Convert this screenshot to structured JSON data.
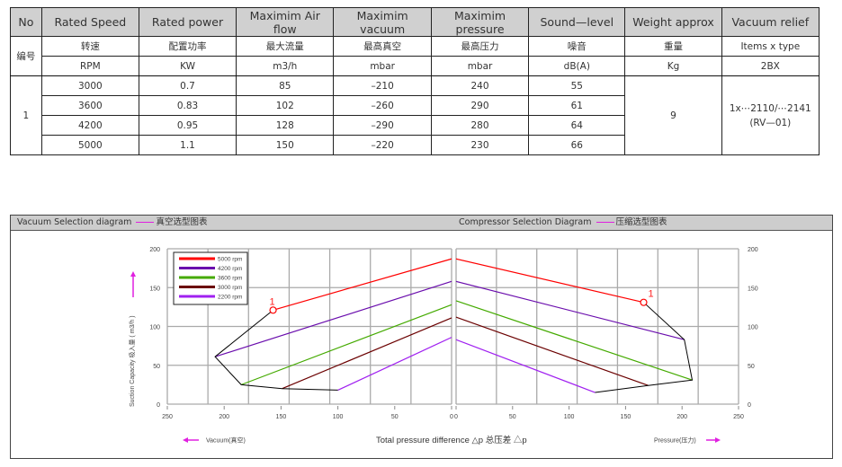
{
  "table": {
    "headers": [
      "No",
      "Rated Speed",
      "Rated power",
      "Maximim Air flow",
      "Maximim vacuum",
      "Maximim pressure",
      "Sound—level",
      "Weight approx",
      "Vacuum relief"
    ],
    "cn_row": {
      "no": "编号",
      "cells": [
        "转速",
        "配置功率",
        "最大流量",
        "最高真空",
        "最高压力",
        "噪音",
        "重量",
        "Items x type"
      ]
    },
    "unit_row": [
      "RPM",
      "KW",
      "m3/h",
      "mbar",
      "mbar",
      "dB(A)",
      "Kg",
      "2BX"
    ],
    "model_no": "1",
    "weight": "9",
    "vacuum_relief_line1": "1x⋯2110/⋯2141",
    "vacuum_relief_line2": "(RV—01)",
    "rows": [
      {
        "speed": "3000",
        "power": "0.7",
        "airflow": "85",
        "vacuum": "–210",
        "pressure": "240",
        "sound": "55"
      },
      {
        "speed": "3600",
        "power": "0.83",
        "airflow": "102",
        "vacuum": "–260",
        "pressure": "290",
        "sound": "61"
      },
      {
        "speed": "4200",
        "power": "0.95",
        "airflow": "128",
        "vacuum": "–290",
        "pressure": "280",
        "sound": "64"
      },
      {
        "speed": "5000",
        "power": "1.1",
        "airflow": "150",
        "vacuum": "–220",
        "pressure": "230",
        "sound": "66"
      }
    ]
  },
  "diagram": {
    "left_title_en": "Vacuum Selection diagram",
    "left_title_cn": "真空选型图表",
    "right_title_en": "Compressor Selection Diagram",
    "right_title_cn": "压缩选型图表",
    "y_axis_label": "Suction Capacity 吸入量 ( m3/h )",
    "x_axis_label": "Total pressure difference △p 总压差 △p",
    "vacuum_arrow_label": "Vacuum(真空)",
    "pressure_arrow_label": "Pressure(压力)",
    "marker_label": "1",
    "accent_color": "#e020e0"
  },
  "chart_data": [
    {
      "type": "line",
      "title": "Vacuum Selection diagram — 真空选型图表",
      "xlabel": "Vacuum(真空) — Total pressure difference △p (mbar)",
      "ylabel": "Suction Capacity 吸入量 ( m3/h )",
      "xlim": [
        250,
        0
      ],
      "ylim": [
        0,
        200
      ],
      "x_ticks": [
        250,
        200,
        150,
        100,
        50,
        0
      ],
      "y_ticks": [
        0,
        50,
        100,
        150,
        200
      ],
      "grid": true,
      "legend_position": "upper-left",
      "series": [
        {
          "name": "5000 rpm",
          "color": "#ff0000",
          "x": [
            157,
            0
          ],
          "y": [
            121,
            187
          ]
        },
        {
          "name": "4200 rpm",
          "color": "#6a0dad",
          "x": [
            208,
            0
          ],
          "y": [
            61,
            158
          ]
        },
        {
          "name": "3600 rpm",
          "color": "#44aa00",
          "x": [
            185,
            0
          ],
          "y": [
            25,
            128
          ]
        },
        {
          "name": "3000 rpm",
          "color": "#6b0000",
          "x": [
            149,
            0
          ],
          "y": [
            20,
            111
          ]
        },
        {
          "name": "2200 rpm",
          "color": "#a020f0",
          "x": [
            100,
            0
          ],
          "y": [
            18,
            86
          ]
        }
      ],
      "boundary": {
        "color": "#000000",
        "x": [
          157,
          208,
          185,
          149,
          100
        ],
        "y": [
          121,
          61,
          25,
          20,
          18
        ]
      },
      "annotations": [
        {
          "text": "1",
          "x": 157,
          "y": 121
        }
      ]
    },
    {
      "type": "line",
      "title": "Compressor Selection Diagram — 压缩选型图表",
      "xlabel": "Pressure(压力) — Total pressure difference △p (mbar)",
      "ylabel": "Suction Capacity 吸入量 ( m3/h )",
      "xlim": [
        0,
        250
      ],
      "ylim": [
        0,
        200
      ],
      "x_ticks": [
        0,
        50,
        100,
        150,
        200,
        250
      ],
      "y_ticks": [
        0,
        50,
        100,
        150,
        200
      ],
      "grid": true,
      "series": [
        {
          "name": "5000 rpm",
          "color": "#ff0000",
          "x": [
            0,
            166
          ],
          "y": [
            187,
            131
          ]
        },
        {
          "name": "4200 rpm",
          "color": "#6a0dad",
          "x": [
            0,
            202
          ],
          "y": [
            158,
            83
          ]
        },
        {
          "name": "3600 rpm",
          "color": "#44aa00",
          "x": [
            0,
            209
          ],
          "y": [
            133,
            31
          ]
        },
        {
          "name": "3000 rpm",
          "color": "#6b0000",
          "x": [
            0,
            170
          ],
          "y": [
            112,
            24
          ]
        },
        {
          "name": "2200 rpm",
          "color": "#a020f0",
          "x": [
            0,
            123
          ],
          "y": [
            83,
            15
          ]
        }
      ],
      "boundary": {
        "color": "#000000",
        "x": [
          166,
          202,
          209,
          170,
          123
        ],
        "y": [
          131,
          83,
          31,
          24,
          15
        ]
      },
      "annotations": [
        {
          "text": "1",
          "x": 166,
          "y": 131
        }
      ]
    }
  ]
}
